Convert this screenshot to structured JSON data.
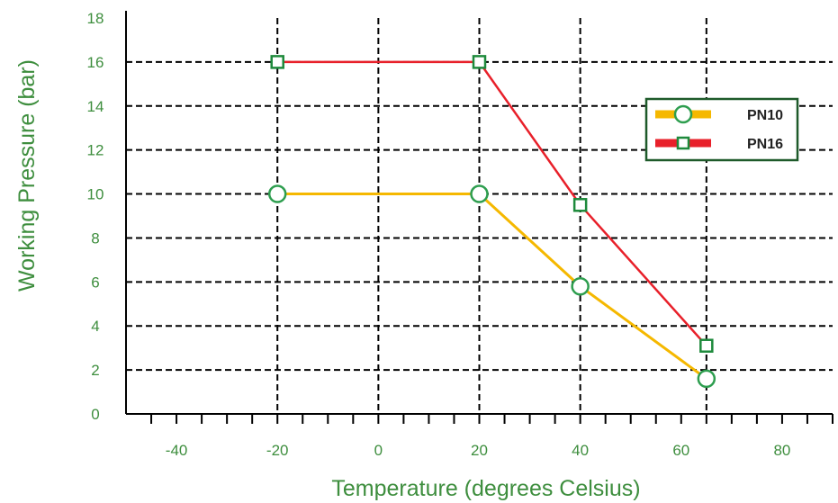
{
  "chart_data": {
    "type": "line",
    "title": "",
    "xlabel": "Temperature (degrees Celsius)",
    "ylabel": "Working Pressure (bar)",
    "xlim": [
      -50,
      90
    ],
    "ylim": [
      0,
      18
    ],
    "x_ticks": [
      -40,
      -20,
      0,
      20,
      40,
      60,
      80
    ],
    "y_ticks": [
      0,
      2,
      4,
      6,
      8,
      10,
      12,
      14,
      16,
      18
    ],
    "x_gridlines": [
      -20,
      0,
      20,
      40,
      65
    ],
    "y_gridlines": [
      2,
      4,
      6,
      8,
      10,
      12,
      14,
      16
    ],
    "grid": true,
    "legend_position": "top-right",
    "series": [
      {
        "name": "PN10",
        "color": "#F5B800",
        "marker": "circle",
        "marker_color": "#2E9E4F",
        "points": [
          [
            -20,
            10
          ],
          [
            20,
            10
          ],
          [
            40,
            5.8
          ],
          [
            65,
            1.6
          ]
        ]
      },
      {
        "name": "PN16",
        "color": "#E8202A",
        "marker": "square",
        "marker_color": "#1E8A3C",
        "points": [
          [
            -20,
            16
          ],
          [
            20,
            16
          ],
          [
            40,
            9.5
          ],
          [
            65,
            3.1
          ]
        ]
      }
    ],
    "colors": {
      "text": "#3E8E3E",
      "axis": "#000000",
      "grid": "#000000",
      "legend_border": "#1E5A2A"
    }
  }
}
